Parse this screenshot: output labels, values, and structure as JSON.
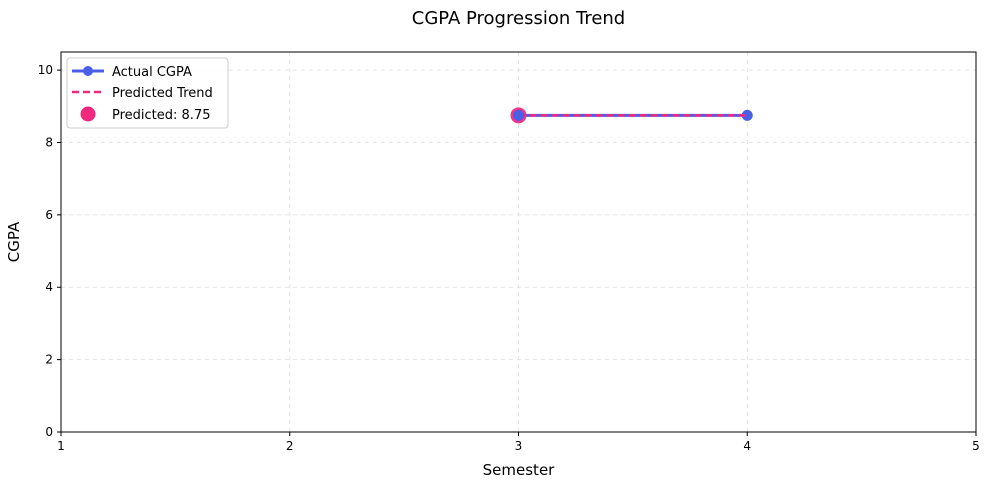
{
  "chart_data": {
    "type": "line",
    "title": "CGPA Progression Trend",
    "xlabel": "Semester",
    "ylabel": "CGPA",
    "xlim": [
      1,
      5
    ],
    "ylim": [
      0,
      10.5
    ],
    "xticks": [
      1,
      2,
      3,
      4,
      5
    ],
    "yticks": [
      0,
      2,
      4,
      6,
      8,
      10
    ],
    "grid": true,
    "legend_position": "top-left",
    "series": [
      {
        "name": "Actual CGPA",
        "style": "line-with-markers",
        "color": "#4a5fe8",
        "x": [
          3,
          4
        ],
        "y": [
          8.75,
          8.75
        ]
      },
      {
        "name": "Predicted Trend",
        "style": "dashed-line",
        "color": "#f0297f",
        "x": [
          3,
          4
        ],
        "y": [
          8.75,
          8.75
        ]
      },
      {
        "name": "Predicted: 8.75",
        "style": "scatter",
        "color": "#f0297f",
        "x": [
          3
        ],
        "y": [
          8.75
        ]
      }
    ]
  }
}
